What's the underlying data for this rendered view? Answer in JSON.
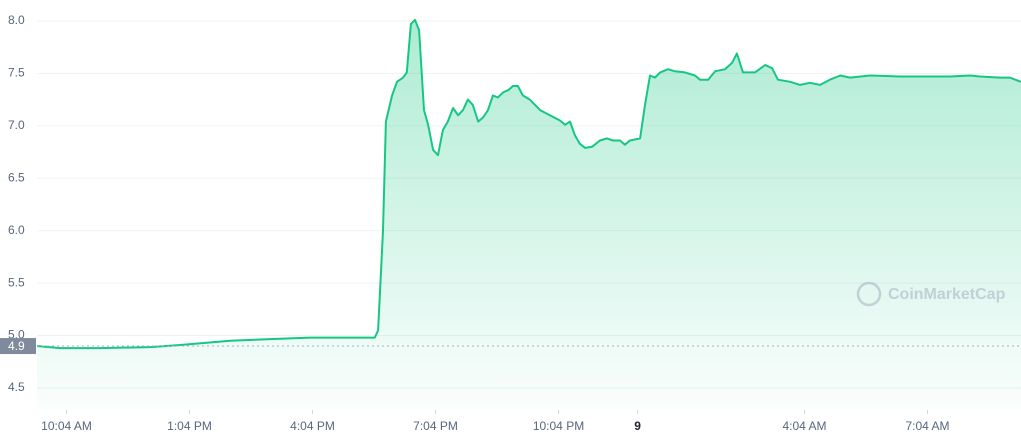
{
  "chart_data": {
    "type": "area",
    "watermark": "CoinMarketCap",
    "color": "#16c784",
    "grid": true,
    "xlim": [
      9.35,
      33.35
    ],
    "xticks": [
      {
        "value": 10.07,
        "label": "10:04 AM"
      },
      {
        "value": 13.07,
        "label": "1:04 PM"
      },
      {
        "value": 16.07,
        "label": "4:04 PM"
      },
      {
        "value": 19.07,
        "label": "7:04 PM"
      },
      {
        "value": 22.07,
        "label": "10:04 PM"
      },
      {
        "value": 24,
        "label": "9"
      },
      {
        "value": 28.07,
        "label": "4:04 AM"
      },
      {
        "value": 31.07,
        "label": "7:04 AM"
      }
    ],
    "ylim": [
      4.29,
      8.2
    ],
    "yticks": [
      {
        "value": 4.5,
        "label": "4.5"
      },
      {
        "value": 5,
        "label": "5.0"
      },
      5.5,
      {
        "value": 6,
        "label": "6.0"
      },
      6.5,
      {
        "value": 7,
        "label": "7.0"
      },
      7.5,
      {
        "value": 8,
        "label": "8.0"
      }
    ],
    "reference_line": {
      "value": 4.9
    },
    "x": [
      9.35,
      9.91,
      10.89,
      12.11,
      12.84,
      14.06,
      15.28,
      16.01,
      16.98,
      17.59,
      17.67,
      17.79,
      17.86,
      18.01,
      18.13,
      18.28,
      18.37,
      18.47,
      18.57,
      18.67,
      18.79,
      18.89,
      19.01,
      19.13,
      19.25,
      19.37,
      19.5,
      19.62,
      19.74,
      19.86,
      19.98,
      20.11,
      20.23,
      20.35,
      20.47,
      20.59,
      20.72,
      20.84,
      20.96,
      21.08,
      21.2,
      21.37,
      21.62,
      21.86,
      22.11,
      22.23,
      22.35,
      22.47,
      22.59,
      22.72,
      22.89,
      23.08,
      23.25,
      23.4,
      23.57,
      23.69,
      23.81,
      24.06,
      24.18,
      24.3,
      24.42,
      24.55,
      24.74,
      24.91,
      25.15,
      25.4,
      25.52,
      25.72,
      25.89,
      26.13,
      26.3,
      26.42,
      26.57,
      26.86,
      27.11,
      27.28,
      27.42,
      27.72,
      27.96,
      28.2,
      28.45,
      28.69,
      28.94,
      29.18,
      29.67,
      30.4,
      31.62,
      32.11,
      32.35,
      32.84,
      33.08,
      33.35
    ],
    "values": [
      4.9,
      4.88,
      4.88,
      4.89,
      4.91,
      4.95,
      4.97,
      4.98,
      4.98,
      4.98,
      5.05,
      6.0,
      7.04,
      7.29,
      7.42,
      7.46,
      7.51,
      7.97,
      8.01,
      7.91,
      7.15,
      7.01,
      6.77,
      6.72,
      6.96,
      7.04,
      7.17,
      7.1,
      7.15,
      7.25,
      7.2,
      7.04,
      7.08,
      7.15,
      7.29,
      7.27,
      7.32,
      7.34,
      7.38,
      7.38,
      7.29,
      7.25,
      7.15,
      7.1,
      7.05,
      7.01,
      7.04,
      6.91,
      6.83,
      6.79,
      6.8,
      6.86,
      6.88,
      6.86,
      6.86,
      6.82,
      6.86,
      6.88,
      7.2,
      7.48,
      7.46,
      7.51,
      7.54,
      7.52,
      7.51,
      7.48,
      7.44,
      7.44,
      7.52,
      7.54,
      7.6,
      7.69,
      7.51,
      7.51,
      7.58,
      7.55,
      7.44,
      7.42,
      7.39,
      7.41,
      7.39,
      7.44,
      7.48,
      7.46,
      7.48,
      7.47,
      7.47,
      7.48,
      7.47,
      7.46,
      7.46,
      7.42
    ]
  }
}
